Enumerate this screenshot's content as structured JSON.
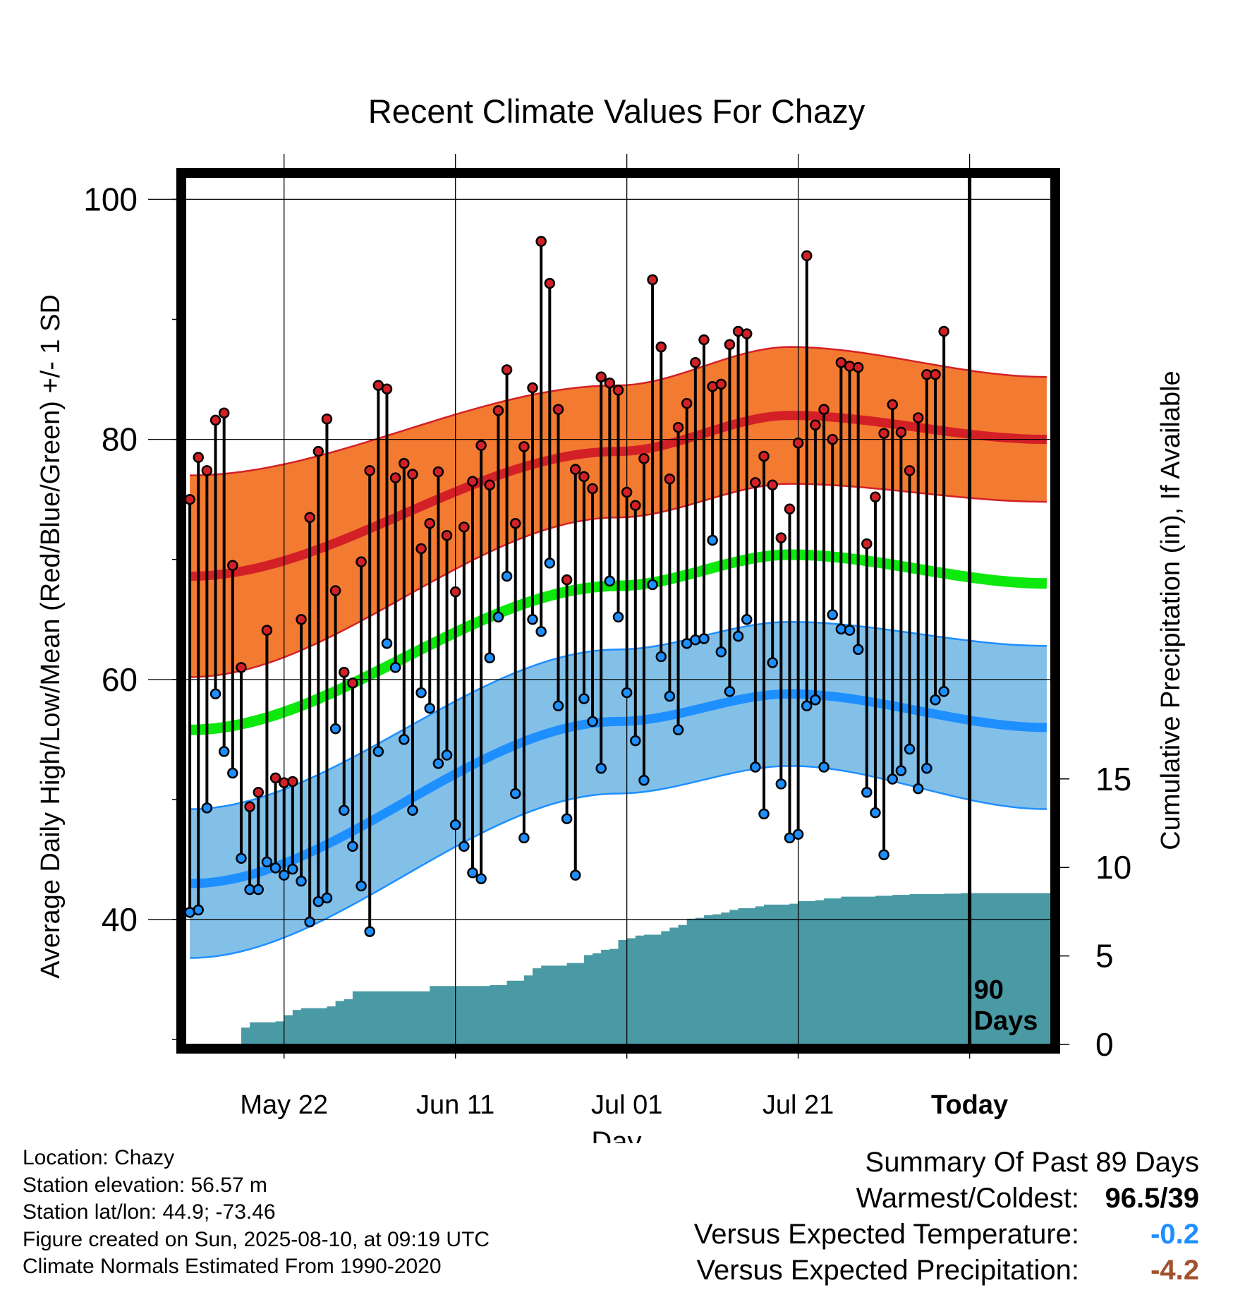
{
  "chart_data": {
    "type": "line",
    "title": "Recent Climate Values For Chazy",
    "xlabel": "Day",
    "ylabel": "Average Daily High/Low/Mean (Red/Blue/Green) +/- 1 SD",
    "y2label": "Cumulative Precipitation (in), If Available",
    "ylim": [
      29.6,
      102.2
    ],
    "y2lim": [
      0,
      100
    ],
    "y_ticks": [
      100,
      80,
      60,
      40
    ],
    "y2_ticks": [
      15,
      10,
      5,
      0
    ],
    "x_ticks": [
      {
        "day": 11,
        "label": "May 22"
      },
      {
        "day": 31,
        "label": "Jun 11"
      },
      {
        "day": 51,
        "label": "Jul 01"
      },
      {
        "day": 71,
        "label": "Jul 21"
      },
      {
        "day": 91,
        "label": "Today"
      }
    ],
    "xlim": [
      -0.5,
      100.5
    ],
    "today_day": 91,
    "today_marker_label": [
      "90",
      "Days"
    ],
    "grid": true,
    "colors": {
      "high": "#d32027",
      "high_band": "#f37b31",
      "low": "#1e8fff",
      "low_band": "#83c0e8",
      "mean": "#0de80d",
      "precip": "#4a9aa5"
    },
    "normal_high": {
      "day": [
        0,
        50,
        70,
        100
      ],
      "value": [
        68.6,
        79.0,
        82.0,
        80.0
      ],
      "sd": [
        8.4,
        5.5,
        5.7,
        5.2
      ]
    },
    "normal_low": {
      "day": [
        0,
        50,
        70,
        100
      ],
      "value": [
        43.0,
        56.5,
        58.8,
        56.0
      ],
      "sd": [
        6.2,
        6.0,
        6.0,
        6.8
      ]
    },
    "normal_mean": {
      "day": [
        0,
        50,
        70,
        100
      ],
      "value": [
        55.8,
        67.8,
        70.4,
        68.0
      ]
    },
    "daily_high": [
      75.0,
      78.5,
      77.4,
      81.6,
      82.2,
      69.5,
      61.0,
      49.4,
      50.6,
      64.1,
      51.8,
      51.4,
      51.5,
      65.0,
      73.5,
      79.0,
      81.7,
      67.4,
      60.6,
      59.7,
      69.8,
      77.4,
      84.5,
      84.2,
      76.8,
      78.0,
      77.1,
      70.9,
      73.0,
      77.3,
      72.0,
      67.3,
      72.7,
      76.5,
      79.5,
      76.2,
      82.4,
      85.8,
      73.0,
      79.4,
      84.3,
      96.5,
      93.0,
      82.5,
      68.3,
      77.5,
      76.9,
      75.9,
      85.2,
      84.7,
      84.1,
      75.6,
      74.5,
      78.4,
      93.3,
      87.7,
      76.7,
      81.0,
      83.0,
      86.4,
      88.3,
      84.4,
      84.6,
      87.9,
      89.0,
      88.8,
      76.4,
      78.6,
      76.2,
      71.8,
      74.2,
      79.7,
      95.3,
      81.2,
      82.5,
      80.0,
      86.4,
      86.1,
      86.0,
      71.3,
      75.2,
      80.5,
      82.9,
      80.6,
      77.4,
      81.8,
      85.4,
      85.4,
      89.0
    ],
    "daily_low": [
      40.6,
      40.8,
      49.3,
      58.8,
      54.0,
      52.2,
      45.1,
      42.5,
      42.5,
      44.8,
      44.3,
      43.7,
      44.2,
      43.2,
      39.8,
      41.5,
      41.8,
      55.9,
      49.1,
      46.1,
      42.8,
      39.0,
      54.0,
      63.0,
      61.0,
      55.0,
      49.1,
      58.9,
      57.6,
      53.0,
      53.7,
      47.9,
      46.1,
      43.9,
      43.4,
      61.8,
      65.2,
      68.6,
      50.5,
      46.8,
      65.0,
      64.0,
      69.7,
      57.8,
      48.4,
      43.7,
      58.4,
      56.5,
      52.6,
      68.2,
      65.2,
      58.9,
      54.9,
      51.6,
      67.9,
      61.9,
      58.6,
      55.8,
      63.0,
      63.3,
      63.4,
      71.6,
      62.3,
      59.0,
      63.6,
      65.0,
      52.7,
      48.8,
      61.4,
      51.3,
      46.8,
      47.1,
      57.8,
      58.3,
      52.7,
      65.4,
      64.2,
      64.1,
      62.5,
      50.6,
      48.9,
      45.4,
      51.7,
      52.4,
      54.2,
      50.9,
      52.6,
      58.3,
      59.0
    ],
    "precip_cumulative": [
      {
        "day": 5,
        "value": 0.0
      },
      {
        "day": 6,
        "value": 0.95
      },
      {
        "day": 7,
        "value": 1.25
      },
      {
        "day": 10,
        "value": 1.3
      },
      {
        "day": 11,
        "value": 1.65
      },
      {
        "day": 12,
        "value": 1.95
      },
      {
        "day": 13,
        "value": 2.05
      },
      {
        "day": 16,
        "value": 2.15
      },
      {
        "day": 17,
        "value": 2.45
      },
      {
        "day": 18,
        "value": 2.55
      },
      {
        "day": 19,
        "value": 3.0
      },
      {
        "day": 28,
        "value": 3.3
      },
      {
        "day": 35,
        "value": 3.35
      },
      {
        "day": 37,
        "value": 3.6
      },
      {
        "day": 39,
        "value": 3.9
      },
      {
        "day": 40,
        "value": 4.3
      },
      {
        "day": 41,
        "value": 4.45
      },
      {
        "day": 44,
        "value": 4.6
      },
      {
        "day": 46,
        "value": 5.05
      },
      {
        "day": 47,
        "value": 5.15
      },
      {
        "day": 48,
        "value": 5.35
      },
      {
        "day": 49,
        "value": 5.4
      },
      {
        "day": 50,
        "value": 5.9
      },
      {
        "day": 51,
        "value": 6.0
      },
      {
        "day": 52,
        "value": 6.15
      },
      {
        "day": 53,
        "value": 6.2
      },
      {
        "day": 55,
        "value": 6.4
      },
      {
        "day": 56,
        "value": 6.6
      },
      {
        "day": 57,
        "value": 6.75
      },
      {
        "day": 58,
        "value": 7.1
      },
      {
        "day": 59,
        "value": 7.15
      },
      {
        "day": 60,
        "value": 7.3
      },
      {
        "day": 61,
        "value": 7.35
      },
      {
        "day": 62,
        "value": 7.45
      },
      {
        "day": 63,
        "value": 7.6
      },
      {
        "day": 64,
        "value": 7.7
      },
      {
        "day": 66,
        "value": 7.8
      },
      {
        "day": 67,
        "value": 7.9
      },
      {
        "day": 70,
        "value": 7.95
      },
      {
        "day": 71,
        "value": 8.1
      },
      {
        "day": 73,
        "value": 8.15
      },
      {
        "day": 74,
        "value": 8.25
      },
      {
        "day": 76,
        "value": 8.35
      },
      {
        "day": 80,
        "value": 8.4
      },
      {
        "day": 82,
        "value": 8.45
      },
      {
        "day": 84,
        "value": 8.5
      },
      {
        "day": 86,
        "value": 8.5
      },
      {
        "day": 88,
        "value": 8.52
      },
      {
        "day": 90,
        "value": 8.55
      },
      {
        "day": 100,
        "value": 8.55
      }
    ]
  },
  "footer": {
    "location": "Location: Chazy",
    "elevation": "Station elevation: 56.57 m",
    "latlon": "Station lat/lon: 44.9; -73.46",
    "created": "Figure created on Sun, 2025-08-10, at 09:19 UTC",
    "normals": "Climate Normals Estimated From 1990-2020"
  },
  "summary": {
    "title": "Summary Of Past 89 Days",
    "warmest_label": "Warmest/Coldest:",
    "warmest_value": "96.5/39",
    "temp_label": "Versus Expected Temperature:",
    "temp_value": "-0.2",
    "temp_color": "#1e8fff",
    "precip_label": "Versus Expected Precipitation:",
    "precip_value": "-4.2",
    "precip_color": "#a0522d"
  }
}
